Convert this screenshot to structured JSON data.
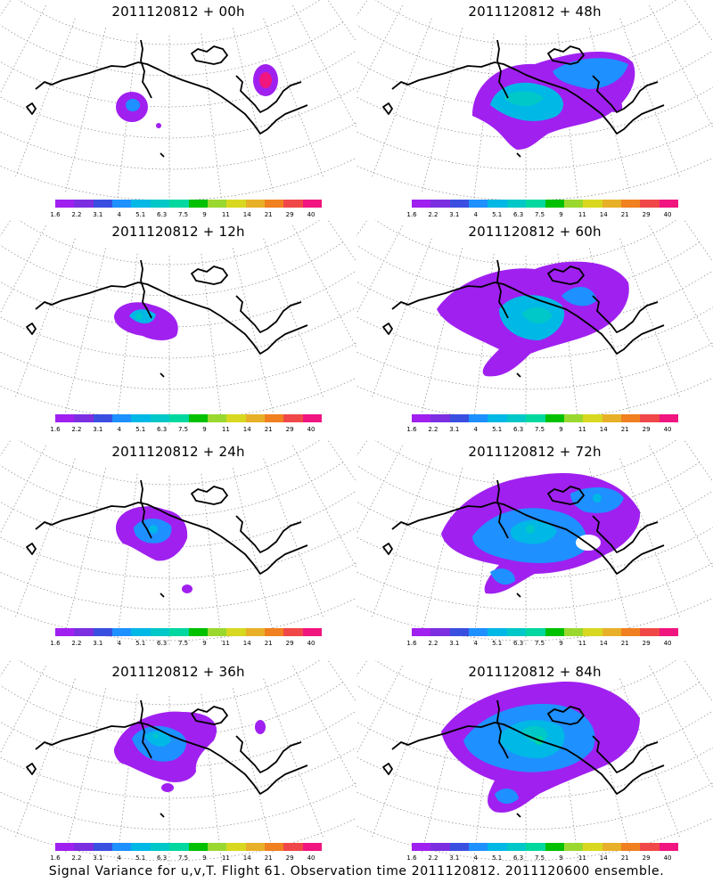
{
  "panels": [
    {
      "title": "2011120812 + 00h"
    },
    {
      "title": "2011120812 + 48h"
    },
    {
      "title": "2011120812 + 12h"
    },
    {
      "title": "2011120812 + 60h"
    },
    {
      "title": "2011120812 + 24h"
    },
    {
      "title": "2011120812 + 72h"
    },
    {
      "title": "2011120812 + 36h"
    },
    {
      "title": "2011120812 + 84h"
    }
  ],
  "colorbar": {
    "labels": [
      "1.6",
      "2.2",
      "3.1",
      "4",
      "5.1",
      "6.3",
      "7.5",
      "9",
      "11",
      "14",
      "21",
      "29",
      "40"
    ],
    "colors": [
      "#a020f0",
      "#7b2fe0",
      "#3a4fe0",
      "#1e90ff",
      "#00b8e6",
      "#00c8c8",
      "#00d8a0",
      "#00c000",
      "#9ad830",
      "#d8d820",
      "#e8b028",
      "#f08020",
      "#f04848",
      "#f0157f"
    ]
  },
  "footer": "Signal Variance for u,v,T. Flight 61. Observation time 2011120812. 2011120600 ensemble."
}
